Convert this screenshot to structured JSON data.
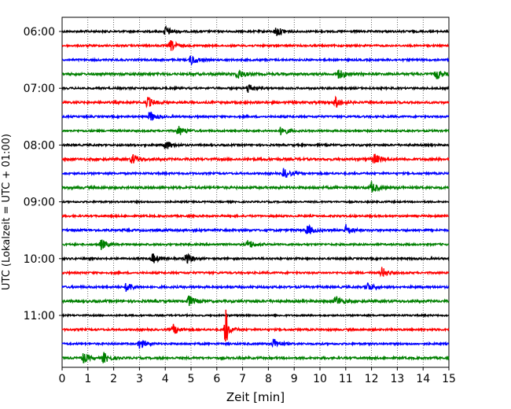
{
  "chart_data": {
    "type": "line",
    "subtype": "helicorder",
    "title": "",
    "xlabel": "Zeit  [min]",
    "ylabel": "UTC (Lokalzeit = UTC + 01:00)",
    "xlim": [
      0,
      15
    ],
    "x_ticks": [
      "0",
      "1",
      "2",
      "3",
      "4",
      "5",
      "6",
      "7",
      "8",
      "9",
      "10",
      "11",
      "12",
      "13",
      "14",
      "15"
    ],
    "y_tick_labels": [
      "06:00",
      "07:00",
      "08:00",
      "09:00",
      "10:00",
      "11:00"
    ],
    "trace_interval_minutes": 15,
    "start_time": "06:00",
    "colors": [
      "#000000",
      "#ff0000",
      "#0000ff",
      "#008000"
    ],
    "vertical_grid": "dotted, every 1 min",
    "traces": [
      {
        "start": "06:00",
        "color": "#000000",
        "events_min": [
          4.0,
          8.3
        ],
        "amp": 0.35
      },
      {
        "start": "06:15",
        "color": "#ff0000",
        "events_min": [
          4.2
        ],
        "amp": 0.35
      },
      {
        "start": "06:30",
        "color": "#0000ff",
        "events_min": [
          5.0
        ],
        "amp": 0.35
      },
      {
        "start": "06:45",
        "color": "#008000",
        "events_min": [
          6.8,
          10.7,
          14.5
        ],
        "amp": 0.45
      },
      {
        "start": "07:00",
        "color": "#000000",
        "events_min": [
          7.2
        ],
        "amp": 0.35
      },
      {
        "start": "07:15",
        "color": "#ff0000",
        "events_min": [
          3.3,
          10.6
        ],
        "amp": 0.4
      },
      {
        "start": "07:30",
        "color": "#0000ff",
        "events_min": [
          3.4
        ],
        "amp": 0.35
      },
      {
        "start": "07:45",
        "color": "#008000",
        "events_min": [
          4.5,
          8.5
        ],
        "amp": 0.35
      },
      {
        "start": "08:00",
        "color": "#000000",
        "events_min": [
          4.0
        ],
        "amp": 0.35
      },
      {
        "start": "08:15",
        "color": "#ff0000",
        "events_min": [
          2.7,
          12.1
        ],
        "amp": 0.45
      },
      {
        "start": "08:30",
        "color": "#0000ff",
        "events_min": [
          8.6
        ],
        "amp": 0.35
      },
      {
        "start": "08:45",
        "color": "#008000",
        "events_min": [
          12.0
        ],
        "amp": 0.45
      },
      {
        "start": "09:00",
        "color": "#000000",
        "events_min": [],
        "amp": 0.3
      },
      {
        "start": "09:15",
        "color": "#ff0000",
        "events_min": [],
        "amp": 0.35
      },
      {
        "start": "09:30",
        "color": "#0000ff",
        "events_min": [
          9.5,
          11.0
        ],
        "amp": 0.4
      },
      {
        "start": "09:45",
        "color": "#008000",
        "events_min": [
          1.5,
          7.2
        ],
        "amp": 0.35
      },
      {
        "start": "10:00",
        "color": "#000000",
        "events_min": [
          3.5,
          4.8
        ],
        "amp": 0.35
      },
      {
        "start": "10:15",
        "color": "#ff0000",
        "events_min": [
          12.4
        ],
        "amp": 0.35
      },
      {
        "start": "10:30",
        "color": "#0000ff",
        "events_min": [
          2.5,
          11.8
        ],
        "amp": 0.4
      },
      {
        "start": "10:45",
        "color": "#008000",
        "events_min": [
          4.9,
          10.6
        ],
        "amp": 0.45
      },
      {
        "start": "11:00",
        "color": "#000000",
        "events_min": [],
        "amp": 0.3
      },
      {
        "start": "11:15",
        "color": "#ff0000",
        "events_min": [
          4.3,
          6.35
        ],
        "amp": 0.35,
        "big_event_min": 6.35
      },
      {
        "start": "11:30",
        "color": "#0000ff",
        "events_min": [
          3.0,
          8.2
        ],
        "amp": 0.35
      },
      {
        "start": "11:45",
        "color": "#008000",
        "events_min": [
          0.8,
          1.6
        ],
        "amp": 0.4
      }
    ]
  }
}
